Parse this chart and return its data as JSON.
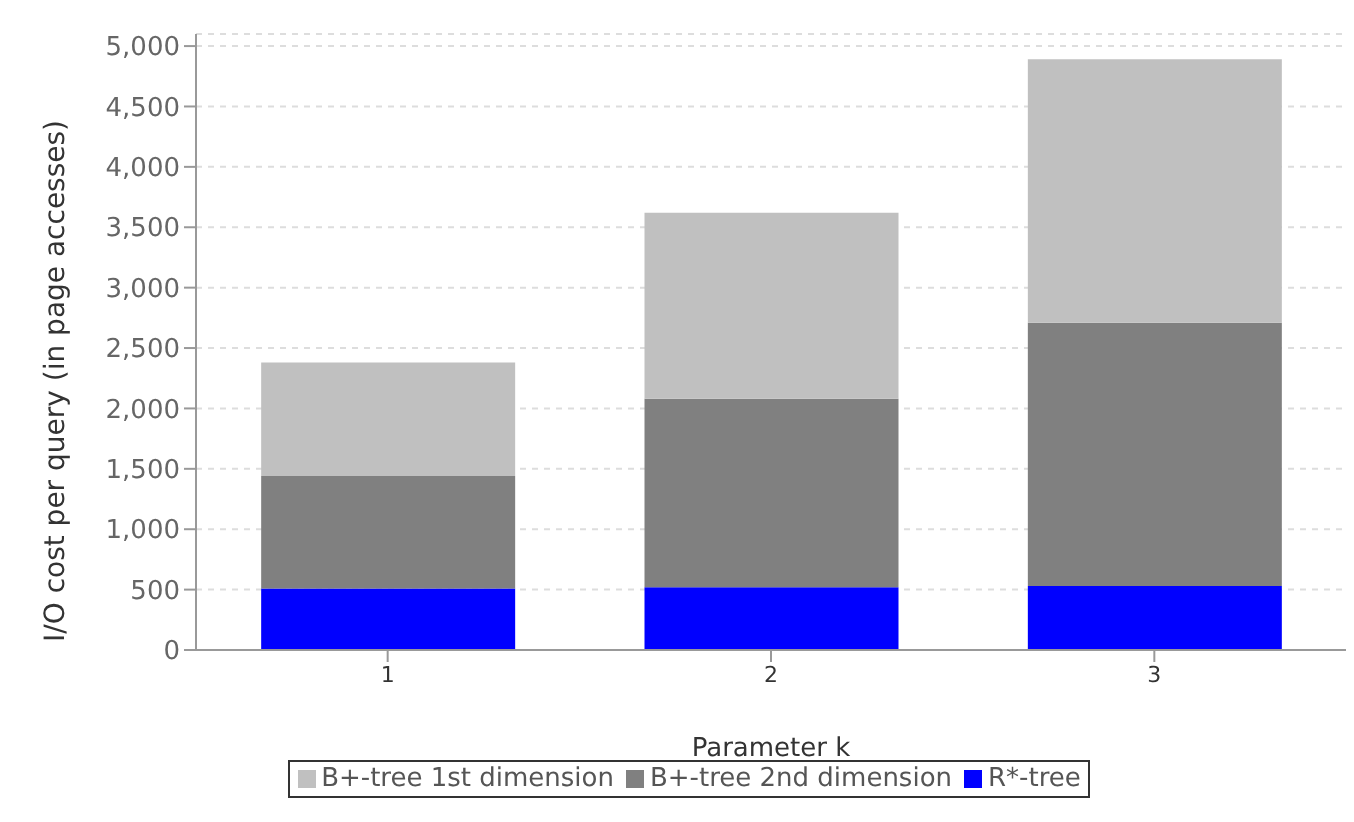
{
  "chart_data": {
    "type": "bar",
    "stacked": true,
    "xlabel": "Parameter k",
    "ylabel": "I/O cost per query (in page accesses)",
    "categories": [
      "1",
      "2",
      "3"
    ],
    "series": [
      {
        "name": "R*-tree",
        "color": "#0000ff",
        "values": [
          510,
          520,
          530
        ]
      },
      {
        "name": "B+-tree 2nd dimension",
        "color": "#808080",
        "values": [
          930,
          1560,
          2180
        ]
      },
      {
        "name": "B+-tree 1st dimension",
        "color": "#c0c0c0",
        "values": [
          940,
          1540,
          2180
        ]
      }
    ],
    "ylim": [
      0,
      5100
    ],
    "yticks": [
      {
        "value": 0,
        "label": "0"
      },
      {
        "value": 500,
        "label": "500"
      },
      {
        "value": 1000,
        "label": "1,000"
      },
      {
        "value": 1500,
        "label": "1,500"
      },
      {
        "value": 2000,
        "label": "2,000"
      },
      {
        "value": 2500,
        "label": "2,500"
      },
      {
        "value": 3000,
        "label": "3,000"
      },
      {
        "value": 3500,
        "label": "3,500"
      },
      {
        "value": 4000,
        "label": "4,000"
      },
      {
        "value": 4500,
        "label": "4,500"
      },
      {
        "value": 5000,
        "label": "5,000"
      }
    ],
    "grid": "y",
    "legend": "bottom"
  }
}
